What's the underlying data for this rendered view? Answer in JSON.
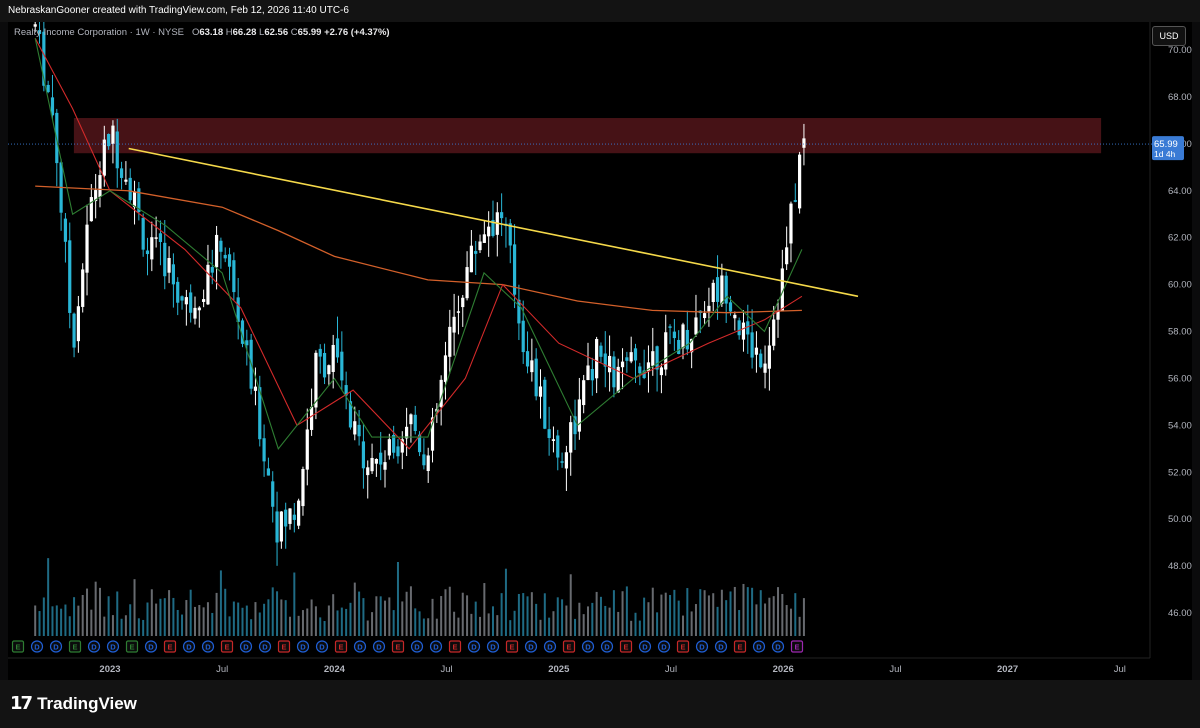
{
  "header": {
    "attribution": "NebraskanGooner created with TradingView.com, Feb 12, 2026 11:40 UTC-6"
  },
  "legend": {
    "symbol": "Realty Income Corporation · 1W · NYSE",
    "o_label": "O",
    "o_value": "63.18",
    "h_label": "H",
    "h_value": "66.28",
    "l_label": "L",
    "l_value": "62.56",
    "c_label": "C",
    "c_value": "65.99",
    "change": "+2.76 (+4.37%)"
  },
  "currency_badge": "USD",
  "price_label": {
    "value": "65.99",
    "countdown": "1d 4h"
  },
  "branding": {
    "logo_mark": "17",
    "logo_text": "TradingView"
  },
  "colors": {
    "candle_up": "#ffffff",
    "candle_down": "#29b6d6",
    "trendline": "#f5d94a",
    "ma_long": "#d3602a",
    "ma_mid": "#d32a2a",
    "ma_short": "#2e7d32",
    "resistance_zone": "#4a1317",
    "dividend_marker": "#1f5fd6",
    "earnings_marker": "#2e7d32",
    "earnings_marker_red": "#c62828",
    "earnings_marker_purple": "#9c27b0",
    "price_label_bg": "#3a7bd5"
  },
  "chart_data": {
    "type": "candlestick",
    "title": "Realty Income Corporation · 1W · NYSE",
    "y_ticks": [
      "46.00",
      "48.00",
      "50.00",
      "52.00",
      "54.00",
      "56.00",
      "58.00",
      "60.00",
      "62.00",
      "64.00",
      "66.00",
      "68.00",
      "70.00"
    ],
    "x_ticks": [
      "2023",
      "Jul",
      "2024",
      "Jul",
      "2025",
      "Jul",
      "2026",
      "Jul",
      "2027",
      "Jul"
    ],
    "ylim": [
      44.5,
      71
    ],
    "x_range": [
      "2022-09",
      "2027-09"
    ],
    "grid": false,
    "last_close": 65.99,
    "resistance_zone": {
      "from": "2022-10",
      "to": "2027-06",
      "y_low": 65.6,
      "y_high": 67.1
    },
    "trendline": {
      "start": {
        "date": "2023-02",
        "value": 65.8
      },
      "end": {
        "date": "2026-05",
        "value": 59.5
      }
    },
    "price_path": [
      {
        "date": "2022-09",
        "value": 71.0
      },
      {
        "date": "2022-10",
        "value": 67.0
      },
      {
        "date": "2022-11",
        "value": 57.5
      },
      {
        "date": "2022-12",
        "value": 63.5
      },
      {
        "date": "2023-01",
        "value": 66.5
      },
      {
        "date": "2023-02",
        "value": 64.5
      },
      {
        "date": "2023-03",
        "value": 61.5
      },
      {
        "date": "2023-04",
        "value": 61.0
      },
      {
        "date": "2023-05",
        "value": 59.0
      },
      {
        "date": "2023-06",
        "value": 60.0
      },
      {
        "date": "2023-07",
        "value": 62.0
      },
      {
        "date": "2023-08",
        "value": 58.0
      },
      {
        "date": "2023-09",
        "value": 54.0
      },
      {
        "date": "2023-10",
        "value": 49.5
      },
      {
        "date": "2023-11",
        "value": 50.5
      },
      {
        "date": "2023-12",
        "value": 56.5
      },
      {
        "date": "2024-01",
        "value": 57.0
      },
      {
        "date": "2024-02",
        "value": 53.5
      },
      {
        "date": "2024-03",
        "value": 52.5
      },
      {
        "date": "2024-04",
        "value": 52.8
      },
      {
        "date": "2024-05",
        "value": 54.5
      },
      {
        "date": "2024-06",
        "value": 52.5
      },
      {
        "date": "2024-07",
        "value": 57.0
      },
      {
        "date": "2024-08",
        "value": 60.5
      },
      {
        "date": "2024-09",
        "value": 62.5
      },
      {
        "date": "2024-10",
        "value": 63.0
      },
      {
        "date": "2024-11",
        "value": 58.0
      },
      {
        "date": "2024-12",
        "value": 55.0
      },
      {
        "date": "2025-01",
        "value": 52.5
      },
      {
        "date": "2025-02",
        "value": 54.5
      },
      {
        "date": "2025-03",
        "value": 57.0
      },
      {
        "date": "2025-04",
        "value": 56.0
      },
      {
        "date": "2025-05",
        "value": 56.5
      },
      {
        "date": "2025-06",
        "value": 57.0
      },
      {
        "date": "2025-07",
        "value": 57.5
      },
      {
        "date": "2025-08",
        "value": 58.0
      },
      {
        "date": "2025-09",
        "value": 59.5
      },
      {
        "date": "2025-10",
        "value": 60.0
      },
      {
        "date": "2025-11",
        "value": 57.5
      },
      {
        "date": "2025-12",
        "value": 57.0
      },
      {
        "date": "2026-01",
        "value": 60.5
      },
      {
        "date": "2026-02",
        "value": 65.99
      }
    ],
    "ma_long": [
      {
        "date": "2022-09",
        "value": 64.2
      },
      {
        "date": "2023-02",
        "value": 64.0
      },
      {
        "date": "2023-07",
        "value": 63.3
      },
      {
        "date": "2023-10",
        "value": 62.3
      },
      {
        "date": "2024-01",
        "value": 61.2
      },
      {
        "date": "2024-06",
        "value": 60.2
      },
      {
        "date": "2024-10",
        "value": 60.0
      },
      {
        "date": "2025-02",
        "value": 59.3
      },
      {
        "date": "2025-06",
        "value": 58.9
      },
      {
        "date": "2025-10",
        "value": 58.8
      },
      {
        "date": "2026-02",
        "value": 58.9
      }
    ],
    "ma_mid": [
      {
        "date": "2022-09",
        "value": 70.5
      },
      {
        "date": "2022-11",
        "value": 67.5
      },
      {
        "date": "2023-01",
        "value": 64.0
      },
      {
        "date": "2023-05",
        "value": 61.5
      },
      {
        "date": "2023-08",
        "value": 59.0
      },
      {
        "date": "2023-11",
        "value": 54.0
      },
      {
        "date": "2024-02",
        "value": 55.5
      },
      {
        "date": "2024-05",
        "value": 53.0
      },
      {
        "date": "2024-08",
        "value": 56.0
      },
      {
        "date": "2024-10",
        "value": 60.0
      },
      {
        "date": "2025-01",
        "value": 57.5
      },
      {
        "date": "2025-05",
        "value": 56.0
      },
      {
        "date": "2025-09",
        "value": 57.5
      },
      {
        "date": "2025-12",
        "value": 58.5
      },
      {
        "date": "2026-02",
        "value": 59.5
      }
    ],
    "ma_short": [
      {
        "date": "2022-09",
        "value": 70.5
      },
      {
        "date": "2022-11",
        "value": 63.0
      },
      {
        "date": "2023-01",
        "value": 64.0
      },
      {
        "date": "2023-04",
        "value": 62.5
      },
      {
        "date": "2023-07",
        "value": 60.5
      },
      {
        "date": "2023-10",
        "value": 53.0
      },
      {
        "date": "2024-01",
        "value": 56.0
      },
      {
        "date": "2024-03",
        "value": 53.5
      },
      {
        "date": "2024-06",
        "value": 53.5
      },
      {
        "date": "2024-09",
        "value": 60.5
      },
      {
        "date": "2024-11",
        "value": 59.0
      },
      {
        "date": "2025-02",
        "value": 54.0
      },
      {
        "date": "2025-05",
        "value": 56.0
      },
      {
        "date": "2025-08",
        "value": 57.5
      },
      {
        "date": "2025-10",
        "value": 59.5
      },
      {
        "date": "2025-12",
        "value": 58.0
      },
      {
        "date": "2026-02",
        "value": 61.5
      }
    ],
    "event_markers": [
      {
        "date": "2022-09",
        "type": "E"
      },
      {
        "date": "2022-10",
        "type": "D"
      },
      {
        "date": "2022-11",
        "type": "D"
      },
      {
        "date": "2022-12",
        "type": "E"
      },
      {
        "date": "2023-01",
        "type": "D"
      },
      {
        "date": "2023-02",
        "type": "D"
      },
      {
        "date": "2023-03",
        "type": "E"
      },
      {
        "date": "2023-04",
        "type": "D"
      },
      {
        "date": "2023-05",
        "type": "E"
      },
      {
        "date": "2023-06",
        "type": "D"
      },
      {
        "date": "2023-07",
        "type": "D"
      },
      {
        "date": "2023-08",
        "type": "E"
      },
      {
        "date": "2023-09",
        "type": "D"
      },
      {
        "date": "2023-10",
        "type": "D"
      },
      {
        "date": "2023-11",
        "type": "E"
      },
      {
        "date": "2023-12",
        "type": "D"
      },
      {
        "date": "2024-01",
        "type": "D"
      },
      {
        "date": "2024-02",
        "type": "E"
      },
      {
        "date": "2024-03",
        "type": "D"
      },
      {
        "date": "2024-04",
        "type": "D"
      },
      {
        "date": "2024-05",
        "type": "E"
      },
      {
        "date": "2024-06",
        "type": "D"
      },
      {
        "date": "2024-07",
        "type": "D"
      },
      {
        "date": "2024-08",
        "type": "E"
      },
      {
        "date": "2024-09",
        "type": "D"
      },
      {
        "date": "2024-10",
        "type": "D"
      },
      {
        "date": "2024-11",
        "type": "E"
      },
      {
        "date": "2024-12",
        "type": "D"
      },
      {
        "date": "2025-01",
        "type": "D"
      },
      {
        "date": "2025-02",
        "type": "E"
      },
      {
        "date": "2025-03",
        "type": "D"
      },
      {
        "date": "2025-04",
        "type": "D"
      },
      {
        "date": "2025-05",
        "type": "E"
      },
      {
        "date": "2025-06",
        "type": "D"
      },
      {
        "date": "2025-07",
        "type": "D"
      },
      {
        "date": "2025-08",
        "type": "E"
      },
      {
        "date": "2025-09",
        "type": "D"
      },
      {
        "date": "2025-10",
        "type": "D"
      },
      {
        "date": "2025-11",
        "type": "E"
      },
      {
        "date": "2025-12",
        "type": "D"
      },
      {
        "date": "2026-01",
        "type": "D"
      },
      {
        "date": "2026-02",
        "type": "E"
      }
    ]
  }
}
